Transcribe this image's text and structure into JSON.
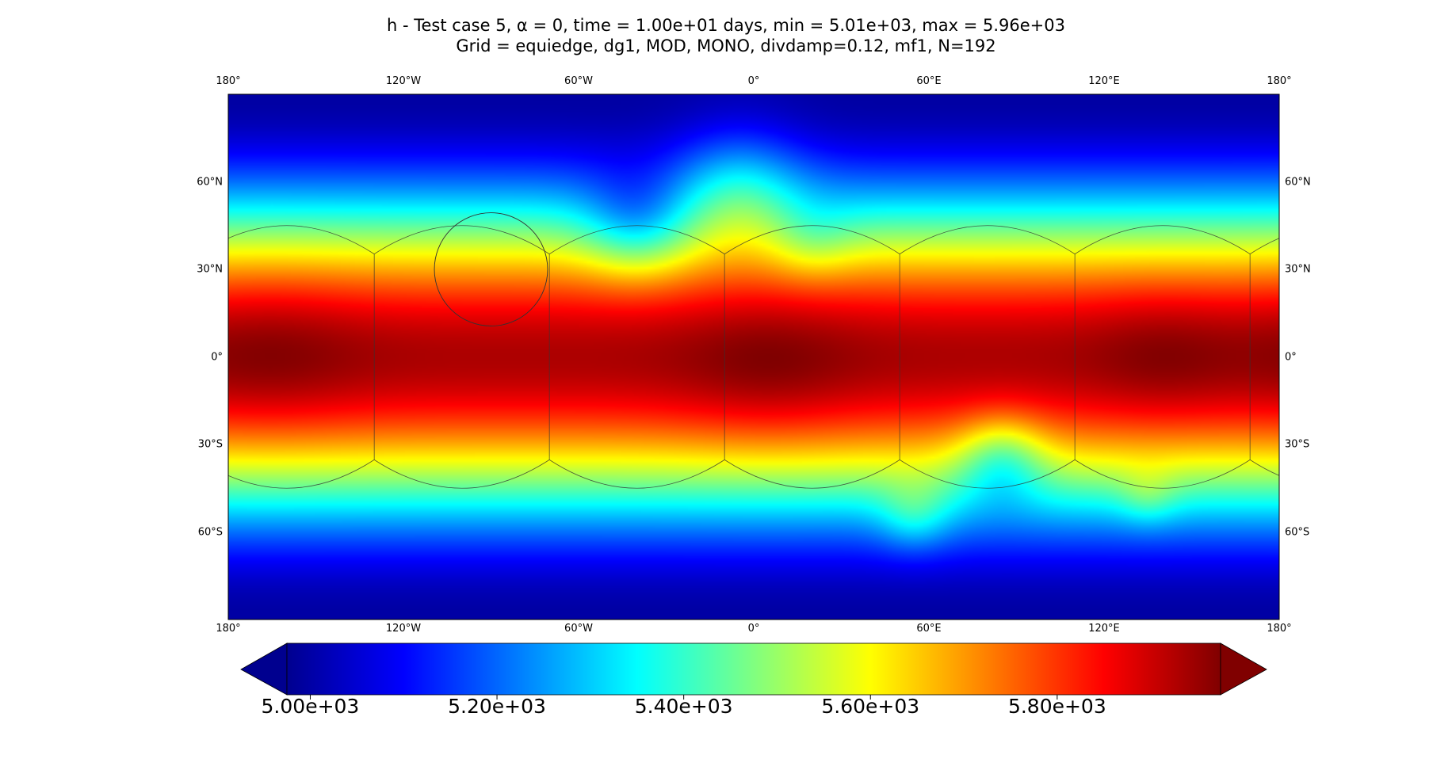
{
  "title": {
    "line1": "h - Test case 5, α = 0, time = 1.00e+01 days, min = 5.01e+03, max = 5.96e+03",
    "line2": "Grid = equiedge, dg1, MOD, MONO, divdamp=0.12, mf1, N=192"
  },
  "map": {
    "projection": "plate-carree",
    "variable": "h",
    "lon_range": [
      -180,
      180
    ],
    "lat_range": [
      -90,
      90
    ],
    "lon_ticks": [
      {
        "value": -180,
        "label": "180°"
      },
      {
        "value": -120,
        "label": "120°W"
      },
      {
        "value": -60,
        "label": "60°W"
      },
      {
        "value": 0,
        "label": "0°"
      },
      {
        "value": 60,
        "label": "60°E"
      },
      {
        "value": 120,
        "label": "120°E"
      },
      {
        "value": 180,
        "label": "180°"
      }
    ],
    "lat_ticks": [
      {
        "value": 60,
        "label": "60°N"
      },
      {
        "value": 30,
        "label": "30°N"
      },
      {
        "value": 0,
        "label": "0°"
      },
      {
        "value": -30,
        "label": "30°S"
      },
      {
        "value": -60,
        "label": "60°S"
      }
    ],
    "mountain_circle": {
      "lon": -90,
      "lat": 30,
      "radius_deg": 20
    },
    "grid_overlay": "cubed-sphere panel edges",
    "colormap": "jet"
  },
  "colorbar": {
    "vmin": 4975,
    "vmax": 5975,
    "extend": "both",
    "ticks": [
      {
        "value": 5000,
        "label": "5.00e+03"
      },
      {
        "value": 5200,
        "label": "5.20e+03"
      },
      {
        "value": 5400,
        "label": "5.40e+03"
      },
      {
        "value": 5600,
        "label": "5.60e+03"
      },
      {
        "value": 5800,
        "label": "5.80e+03"
      }
    ]
  }
}
